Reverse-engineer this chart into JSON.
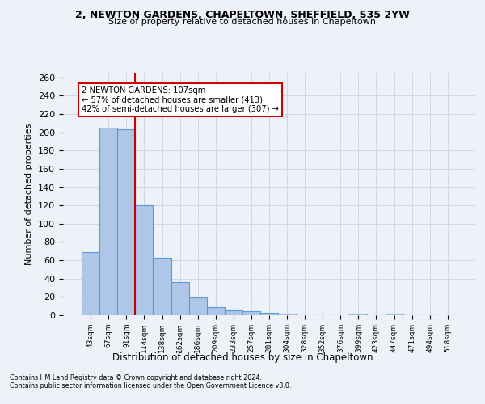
{
  "title1": "2, NEWTON GARDENS, CHAPELTOWN, SHEFFIELD, S35 2YW",
  "title2": "Size of property relative to detached houses in Chapeltown",
  "xlabel": "Distribution of detached houses by size in Chapeltown",
  "ylabel": "Number of detached properties",
  "bar_values": [
    69,
    205,
    203,
    120,
    63,
    36,
    19,
    9,
    5,
    4,
    3,
    2,
    0,
    0,
    0,
    2,
    0,
    2,
    0,
    0,
    0
  ],
  "bar_labels": [
    "43sqm",
    "67sqm",
    "91sqm",
    "114sqm",
    "138sqm",
    "162sqm",
    "186sqm",
    "209sqm",
    "233sqm",
    "257sqm",
    "281sqm",
    "304sqm",
    "328sqm",
    "352sqm",
    "376sqm",
    "399sqm",
    "423sqm",
    "447sqm",
    "471sqm",
    "494sqm",
    "518sqm"
  ],
  "bar_color": "#aec6e8",
  "bar_edge_color": "#5a9bd5",
  "grid_color": "#d0d8e8",
  "background_color": "#eef2f8",
  "red_line_x": 2.5,
  "annotation_text": "2 NEWTON GARDENS: 107sqm\n← 57% of detached houses are smaller (413)\n42% of semi-detached houses are larger (307) →",
  "annotation_box_color": "#ffffff",
  "annotation_border_color": "#cc0000",
  "red_line_color": "#cc0000",
  "ylim": [
    0,
    265
  ],
  "yticks": [
    0,
    20,
    40,
    60,
    80,
    100,
    120,
    140,
    160,
    180,
    200,
    220,
    240,
    260
  ],
  "footnote1": "Contains HM Land Registry data © Crown copyright and database right 2024.",
  "footnote2": "Contains public sector information licensed under the Open Government Licence v3.0."
}
